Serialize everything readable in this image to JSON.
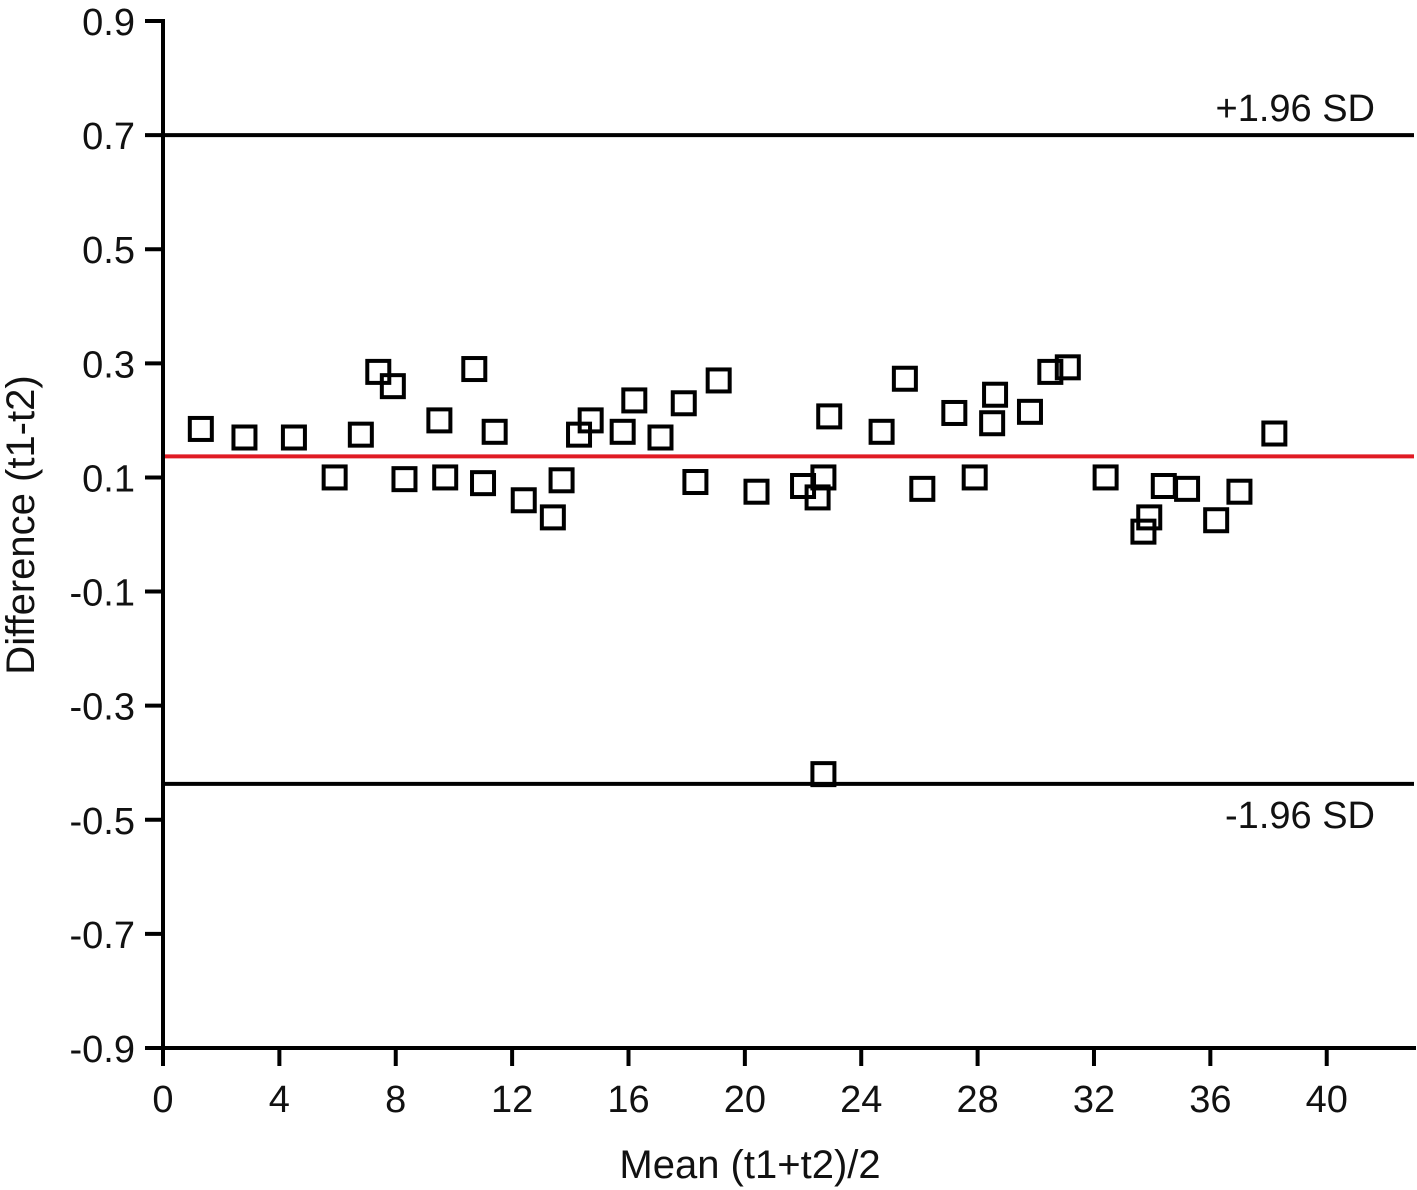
{
  "chart_data": {
    "type": "scatter",
    "title": "",
    "xlabel": "Mean (t1+t2)/2",
    "ylabel": "Difference (t1-t2)",
    "xlim": [
      0,
      43
    ],
    "ylim": [
      -0.9,
      0.9
    ],
    "xticks": [
      0,
      4,
      8,
      12,
      16,
      20,
      24,
      28,
      32,
      36,
      40
    ],
    "xtick_labels": [
      "0",
      "4",
      "8",
      "12",
      "16",
      "20",
      "24",
      "28",
      "32",
      "36",
      "40"
    ],
    "yticks": [
      0.9,
      0.7,
      0.5,
      0.3,
      0.1,
      -0.1,
      -0.3,
      -0.5,
      -0.7,
      -0.9
    ],
    "ytick_labels": [
      "0.9",
      "0.7",
      "0.5",
      "0.3",
      "0.1",
      "-0.1",
      "-0.3",
      "-0.5",
      "-0.7",
      "-0.9"
    ],
    "grid": false,
    "marker": "open-square",
    "reference_lines": [
      {
        "label": "+1.96 SD",
        "y": 0.7,
        "color": "#000000"
      },
      {
        "label": "",
        "y": 0.137,
        "color": "#e01b24"
      },
      {
        "label": "-1.96 SD",
        "y": -0.437,
        "color": "#000000"
      }
    ],
    "points": [
      {
        "x": 1.3,
        "y": 0.185
      },
      {
        "x": 2.8,
        "y": 0.17
      },
      {
        "x": 4.5,
        "y": 0.17
      },
      {
        "x": 5.9,
        "y": 0.1
      },
      {
        "x": 6.8,
        "y": 0.175
      },
      {
        "x": 7.4,
        "y": 0.285
      },
      {
        "x": 7.9,
        "y": 0.26
      },
      {
        "x": 8.3,
        "y": 0.097
      },
      {
        "x": 9.5,
        "y": 0.2
      },
      {
        "x": 9.7,
        "y": 0.1
      },
      {
        "x": 10.7,
        "y": 0.29
      },
      {
        "x": 11.0,
        "y": 0.09
      },
      {
        "x": 11.4,
        "y": 0.18
      },
      {
        "x": 12.4,
        "y": 0.06
      },
      {
        "x": 13.4,
        "y": 0.03
      },
      {
        "x": 13.7,
        "y": 0.095
      },
      {
        "x": 14.3,
        "y": 0.175
      },
      {
        "x": 14.7,
        "y": 0.2
      },
      {
        "x": 15.8,
        "y": 0.18
      },
      {
        "x": 16.2,
        "y": 0.235
      },
      {
        "x": 17.1,
        "y": 0.17
      },
      {
        "x": 17.9,
        "y": 0.23
      },
      {
        "x": 18.3,
        "y": 0.092
      },
      {
        "x": 19.1,
        "y": 0.27
      },
      {
        "x": 20.4,
        "y": 0.075
      },
      {
        "x": 22.0,
        "y": 0.085
      },
      {
        "x": 22.5,
        "y": 0.065
      },
      {
        "x": 22.7,
        "y": 0.1
      },
      {
        "x": 22.9,
        "y": 0.207
      },
      {
        "x": 22.7,
        "y": -0.42
      },
      {
        "x": 24.7,
        "y": 0.18
      },
      {
        "x": 25.5,
        "y": 0.273
      },
      {
        "x": 26.1,
        "y": 0.08
      },
      {
        "x": 27.2,
        "y": 0.213
      },
      {
        "x": 27.9,
        "y": 0.1
      },
      {
        "x": 28.5,
        "y": 0.195
      },
      {
        "x": 28.6,
        "y": 0.245
      },
      {
        "x": 29.8,
        "y": 0.215
      },
      {
        "x": 30.5,
        "y": 0.285
      },
      {
        "x": 31.1,
        "y": 0.293
      },
      {
        "x": 32.4,
        "y": 0.1
      },
      {
        "x": 33.7,
        "y": 0.005
      },
      {
        "x": 33.9,
        "y": 0.03
      },
      {
        "x": 34.4,
        "y": 0.085
      },
      {
        "x": 35.2,
        "y": 0.08
      },
      {
        "x": 36.2,
        "y": 0.025
      },
      {
        "x": 37.0,
        "y": 0.075
      },
      {
        "x": 38.2,
        "y": 0.177
      }
    ]
  }
}
